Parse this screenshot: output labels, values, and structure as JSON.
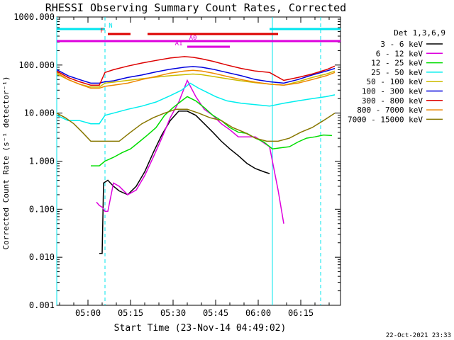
{
  "chart_data": {
    "type": "line",
    "title": "RHESSI Observing Summary Count Rates, Corrected",
    "xlabel": "Start Time (23-Nov-14 04:49:02)",
    "ylabel": "Corrected Count Rate (s⁻¹ detector⁻¹)",
    "y_scale": "log",
    "ylim": [
      0.001,
      1000
    ],
    "xlim_minutes": [
      0,
      100
    ],
    "x_ticks": [
      {
        "label": "05:00",
        "minute": 11
      },
      {
        "label": "05:15",
        "minute": 26
      },
      {
        "label": "05:30",
        "minute": 41
      },
      {
        "label": "05:45",
        "minute": 56
      },
      {
        "label": "06:00",
        "minute": 71
      },
      {
        "label": "06:15",
        "minute": 86
      }
    ],
    "y_ticks": [
      {
        "label": "1000.000",
        "value": 1000
      },
      {
        "label": "100.000",
        "value": 100
      },
      {
        "label": "10.000",
        "value": 10
      },
      {
        "label": "1.000",
        "value": 1
      },
      {
        "label": "0.100",
        "value": 0.1
      },
      {
        "label": "0.010",
        "value": 0.01
      },
      {
        "label": "0.001",
        "value": 0.001
      }
    ],
    "legend_title": "Det 1,3,6,9",
    "legend_position": "right",
    "timestamp": "22-Oct-2021 23:33",
    "flag_labels": {
      "N": "N",
      "F": "F",
      "A0": "A0",
      "A1": "A1"
    },
    "flags": [
      {
        "label": "N",
        "color": "#00e5ee",
        "segments": [
          [
            0,
            17
          ],
          [
            75,
            100
          ]
        ]
      },
      {
        "label": "F",
        "color": "#dd0000",
        "segments": [
          [
            18,
            26
          ],
          [
            32,
            78
          ]
        ]
      },
      {
        "label": "A0",
        "color": "#dd00dd",
        "segments": [
          [
            0,
            100
          ]
        ]
      },
      {
        "label": "A1",
        "color": "#dd00dd",
        "segments": [
          [
            46,
            61
          ]
        ]
      }
    ],
    "vlines": [
      {
        "minute": 0,
        "color": "#00e5ee",
        "style": "solid"
      },
      {
        "minute": 17,
        "color": "#00e5ee",
        "style": "dashed"
      },
      {
        "minute": 76,
        "color": "#00e5ee",
        "style": "solid"
      },
      {
        "minute": 93,
        "color": "#00e5ee",
        "style": "dashed"
      }
    ],
    "series": [
      {
        "name": "3 - 6 keV",
        "color": "#000000",
        "x": [
          15,
          16,
          16.5,
          18,
          20,
          22,
          25,
          28,
          31,
          34,
          37,
          40,
          43,
          46,
          49,
          52,
          55,
          58,
          61,
          64,
          67,
          70,
          73,
          75
        ],
        "y": [
          0.012,
          0.012,
          0.35,
          0.4,
          0.3,
          0.24,
          0.2,
          0.3,
          0.6,
          1.5,
          3.5,
          7,
          11,
          11,
          9,
          6,
          4,
          2.6,
          1.8,
          1.3,
          0.9,
          0.7,
          0.6,
          0.55
        ]
      },
      {
        "name": "6 - 12 keV",
        "color": "#dd00dd",
        "x": [
          14,
          15,
          16,
          17,
          18,
          20,
          22,
          25,
          28,
          31,
          34,
          37,
          40,
          43,
          46,
          49,
          52,
          55,
          58,
          61,
          64,
          67,
          70,
          73,
          75,
          78,
          80
        ],
        "y": [
          0.14,
          0.12,
          0.11,
          0.09,
          0.09,
          0.35,
          0.3,
          0.2,
          0.25,
          0.5,
          1.2,
          3,
          8,
          17,
          48,
          22,
          12,
          9,
          6,
          4.5,
          3.2,
          3.2,
          3.2,
          2.4,
          2,
          0.25,
          0.05
        ]
      },
      {
        "name": "12 - 25 keV",
        "color": "#00dd00",
        "x": [
          12,
          15,
          17,
          20,
          23,
          26,
          29,
          32,
          35,
          38,
          41,
          44,
          46,
          49,
          52,
          55,
          58,
          61,
          64,
          67,
          70,
          73,
          76,
          79,
          82,
          85,
          88,
          91,
          94,
          97
        ],
        "y": [
          0.8,
          0.8,
          1,
          1.2,
          1.5,
          1.8,
          2.5,
          3.5,
          5,
          9,
          13,
          18,
          22,
          18,
          13,
          9,
          7,
          5,
          4,
          3.8,
          3,
          2.5,
          1.8,
          1.9,
          2,
          2.5,
          3,
          3.2,
          3.5,
          3.4
        ]
      },
      {
        "name": "25 - 50 keV",
        "color": "#00eeee",
        "x": [
          0,
          4,
          8,
          12,
          15,
          17,
          20,
          25,
          30,
          35,
          40,
          44,
          47,
          50,
          53,
          56,
          60,
          65,
          70,
          75,
          80,
          85,
          90,
          95,
          98
        ],
        "y": [
          9,
          7,
          7,
          6,
          6,
          9,
          10,
          12,
          14,
          17,
          23,
          30,
          42,
          33,
          27,
          22,
          18,
          16,
          15,
          14,
          16,
          18,
          20,
          22,
          24
        ]
      },
      {
        "name": "50 - 100 keV",
        "color": "#ccbb00",
        "x": [
          0,
          4,
          8,
          12,
          15,
          17,
          20,
          25,
          30,
          35,
          40,
          45,
          48,
          51,
          55,
          60,
          65,
          70,
          75,
          80,
          85,
          90,
          95,
          98
        ],
        "y": [
          65,
          50,
          40,
          35,
          35,
          42,
          44,
          48,
          52,
          56,
          60,
          63,
          65,
          63,
          58,
          52,
          47,
          43,
          40,
          38,
          45,
          55,
          65,
          75
        ]
      },
      {
        "name": "100 - 300 keV",
        "color": "#0000dd",
        "x": [
          0,
          4,
          8,
          12,
          15,
          17,
          20,
          25,
          30,
          35,
          40,
          45,
          48,
          51,
          55,
          60,
          65,
          70,
          75,
          80,
          85,
          90,
          95,
          98
        ],
        "y": [
          80,
          60,
          50,
          42,
          42,
          45,
          47,
          55,
          62,
          72,
          82,
          90,
          93,
          90,
          82,
          70,
          60,
          50,
          45,
          42,
          50,
          62,
          75,
          85
        ]
      },
      {
        "name": "300 - 800 keV",
        "color": "#dd0000",
        "x": [
          0,
          4,
          8,
          12,
          15,
          17,
          20,
          25,
          30,
          35,
          40,
          45,
          48,
          51,
          55,
          60,
          65,
          70,
          75,
          80,
          85,
          90,
          95,
          98
        ],
        "y": [
          75,
          55,
          45,
          38,
          38,
          70,
          80,
          95,
          110,
          125,
          140,
          150,
          145,
          135,
          120,
          100,
          85,
          75,
          70,
          48,
          55,
          65,
          80,
          95
        ]
      },
      {
        "name": "800 - 7000 keV",
        "color": "#ee8800",
        "x": [
          0,
          4,
          8,
          12,
          15,
          17,
          20,
          25,
          30,
          35,
          40,
          45,
          48,
          51,
          55,
          60,
          65,
          70,
          75,
          80,
          85,
          90,
          95,
          98
        ],
        "y": [
          70,
          50,
          40,
          33,
          33,
          36,
          38,
          42,
          50,
          58,
          68,
          75,
          78,
          75,
          68,
          58,
          50,
          44,
          40,
          38,
          42,
          50,
          60,
          70
        ]
      },
      {
        "name": "7000 - 15000 keV",
        "color": "#887700",
        "x": [
          0,
          3,
          6,
          9,
          12,
          15,
          18,
          22,
          26,
          30,
          34,
          38,
          42,
          46,
          50,
          54,
          58,
          62,
          66,
          70,
          74,
          78,
          82,
          86,
          90,
          94,
          98
        ],
        "y": [
          10,
          8,
          6,
          4,
          2.6,
          2.6,
          2.6,
          2.6,
          4,
          6,
          8,
          10,
          12,
          12,
          10,
          8,
          7,
          5,
          4,
          3,
          2.6,
          2.6,
          3,
          4,
          5,
          7,
          10
        ]
      }
    ]
  }
}
